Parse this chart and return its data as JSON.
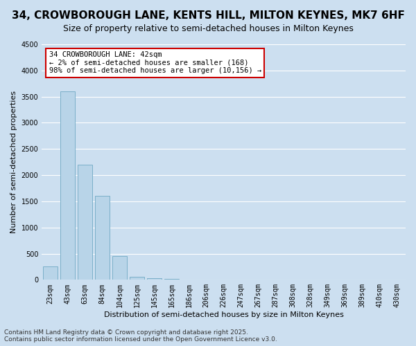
{
  "title": "34, CROWBOROUGH LANE, KENTS HILL, MILTON KEYNES, MK7 6HF",
  "subtitle": "Size of property relative to semi-detached houses in Milton Keynes",
  "xlabel": "Distribution of semi-detached houses by size in Milton Keynes",
  "ylabel": "Number of semi-detached properties",
  "footnote": "Contains HM Land Registry data © Crown copyright and database right 2025.\nContains public sector information licensed under the Open Government Licence v3.0.",
  "bin_labels": [
    "23sqm",
    "43sqm",
    "63sqm",
    "84sqm",
    "104sqm",
    "125sqm",
    "145sqm",
    "165sqm",
    "186sqm",
    "206sqm",
    "226sqm",
    "247sqm",
    "267sqm",
    "287sqm",
    "308sqm",
    "328sqm",
    "349sqm",
    "369sqm",
    "389sqm",
    "410sqm",
    "430sqm"
  ],
  "bar_values": [
    250,
    3600,
    2200,
    1600,
    450,
    60,
    30,
    20,
    10,
    5,
    3,
    2,
    1,
    1,
    0,
    0,
    0,
    0,
    0,
    0,
    0
  ],
  "bar_color": "#b8d4e8",
  "bar_edge_color": "#7aafc8",
  "annotation_line1": "34 CROWBOROUGH LANE: 42sqm",
  "annotation_line2": "← 2% of semi-detached houses are smaller (168)",
  "annotation_line3": "98% of semi-detached houses are larger (10,156) →",
  "annotation_box_color": "#ffffff",
  "annotation_box_edge_color": "#cc0000",
  "property_bin_index": 0,
  "ylim": [
    0,
    4500
  ],
  "bg_color": "#ccdff0",
  "grid_color": "#ffffff",
  "title_fontsize": 11,
  "subtitle_fontsize": 9,
  "axis_label_fontsize": 8,
  "tick_fontsize": 7,
  "annotation_fontsize": 7.5,
  "footnote_fontsize": 6.5
}
